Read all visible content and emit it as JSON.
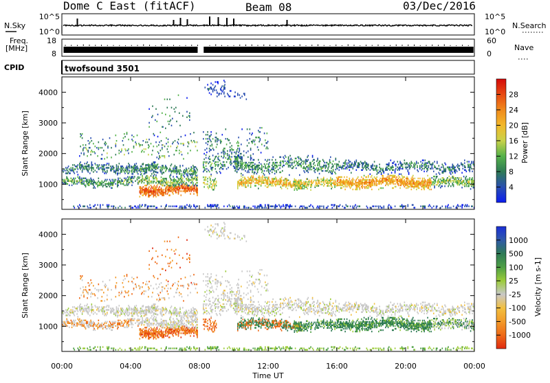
{
  "header": {
    "title": "Dome C East (fitACF)",
    "beam": "Beam 08",
    "date": "03/Dec/2016"
  },
  "noise_panel": {
    "left_label": "N.Sky",
    "right_label": "N.Search",
    "left_ticks": [
      "10^5",
      "10^0"
    ],
    "right_ticks": [
      "10^5",
      "10^0"
    ]
  },
  "freq_panel": {
    "left_label_1": "Freq.",
    "left_label_2": "[MHz]",
    "right_label": "Nave",
    "left_ticks": [
      "18",
      "8"
    ],
    "right_ticks": [
      "60",
      "0"
    ]
  },
  "cpid_panel": {
    "label": "CPID",
    "value": "twofsound 3501"
  },
  "chart_data": [
    {
      "type": "heatmap",
      "name": "power",
      "ylabel": "Slant Range [km]",
      "ylim": [
        180,
        4500
      ],
      "y_ticks": [
        "1000",
        "2000",
        "3000",
        "4000"
      ],
      "y_tick_values": [
        1000,
        2000,
        3000,
        4000
      ],
      "colorbar_label": "Power [dB]",
      "colorbar_ticks": [
        "4",
        "8",
        "12",
        "16",
        "20",
        "24",
        "28"
      ],
      "colorbar_tick_values": [
        4,
        8,
        12,
        16,
        20,
        24,
        28
      ],
      "colorbar_colors": [
        "#0b1cf0",
        "#2a4fb0",
        "#2e7a55",
        "#55b24a",
        "#c9d24a",
        "#f2b82a",
        "#f08a1c",
        "#e84a12",
        "#d40a0a"
      ]
    },
    {
      "type": "heatmap",
      "name": "velocity",
      "ylabel": "Slant Range [km]",
      "ylim": [
        180,
        4500
      ],
      "y_ticks": [
        "1000",
        "2000",
        "3000",
        "4000"
      ],
      "y_tick_values": [
        1000,
        2000,
        3000,
        4000
      ],
      "colorbar_label": "Velocity [m s-1]",
      "colorbar_ticks": [
        "1000",
        "500",
        "100",
        "25",
        "-25",
        "-100",
        "-500",
        "-1000"
      ],
      "colorbar_colors": [
        "#1a2fd6",
        "#2f5aa8",
        "#2e7a55",
        "#4fa046",
        "#9ccc3a",
        "#c8c8c8",
        "#f2c040",
        "#f29a2a",
        "#ee6a18",
        "#e02a10"
      ]
    }
  ],
  "x_axis": {
    "label": "Time UT",
    "ticks": [
      "00:00",
      "04:00",
      "08:00",
      "12:00",
      "16:00",
      "20:00",
      "00:00"
    ],
    "tick_hours": [
      0,
      4,
      8,
      12,
      16,
      20,
      24
    ],
    "xlim_hours": [
      0,
      24
    ]
  }
}
